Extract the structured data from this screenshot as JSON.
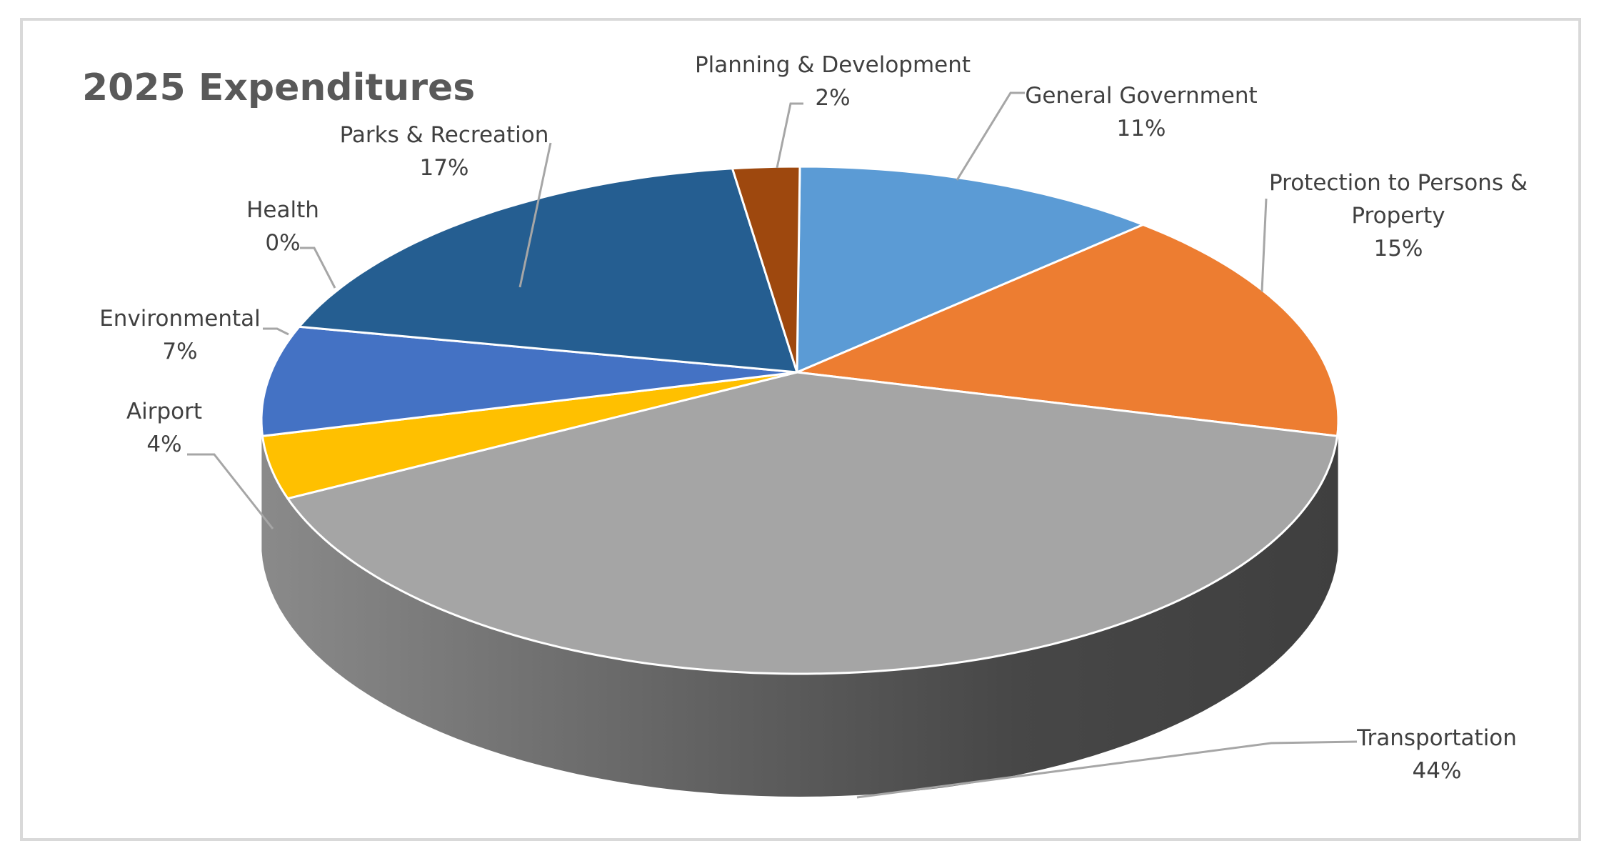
{
  "chart_data": {
    "type": "pie",
    "title": "2025 Expenditures",
    "style": "3d-pie",
    "categories": [
      "General Government",
      "Protection to Persons & Property",
      "Transportation",
      "Airport",
      "Environmental",
      "Health",
      "Parks & Recreation",
      "Planning & Development"
    ],
    "values": [
      11,
      15,
      44,
      4,
      7,
      0,
      17,
      2
    ],
    "value_labels": [
      "11%",
      "15%",
      "44%",
      "4%",
      "7%",
      "0%",
      "17%",
      "2%"
    ],
    "colors": [
      "#5b9bd5",
      "#ed7d31",
      "#a5a5a5",
      "#ffc000",
      "#4472c4",
      "#70ad47",
      "#255e91",
      "#9e480e"
    ],
    "labels": [
      {
        "lines": [
          "General Government"
        ],
        "pct": "11%"
      },
      {
        "lines": [
          "Protection to Persons &",
          "Property"
        ],
        "pct": "15%"
      },
      {
        "lines": [
          "Transportation"
        ],
        "pct": "44%"
      },
      {
        "lines": [
          "Airport"
        ],
        "pct": "4%"
      },
      {
        "lines": [
          "Environmental"
        ],
        "pct": "7%"
      },
      {
        "lines": [
          "Health"
        ],
        "pct": "0%"
      },
      {
        "lines": [
          "Parks & Recreation"
        ],
        "pct": "17%"
      },
      {
        "lines": [
          "Planning & Development"
        ],
        "pct": "2%"
      }
    ],
    "legend": "none",
    "data_labels": "outside-with-leader-lines"
  }
}
